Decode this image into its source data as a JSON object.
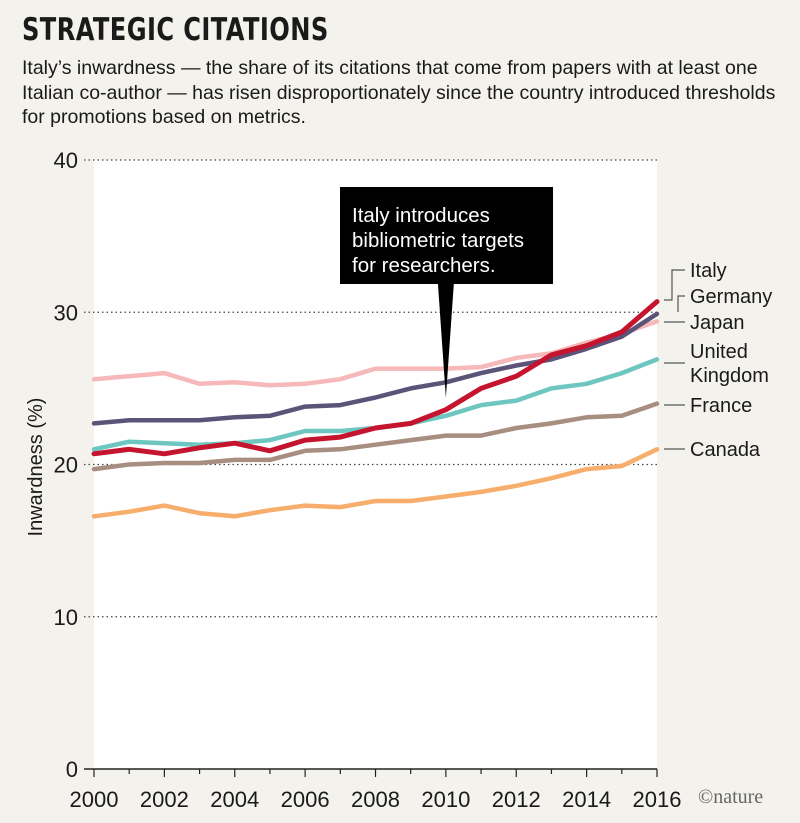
{
  "title": "STRATEGIC CITATIONS",
  "subtitle": "Italy’s inwardness — the share of its citations that come from papers with at least one Italian co-author — has risen disproportionately since the country introduced thresholds for promotions based on metrics.",
  "credit": "©nature",
  "chart_data": {
    "type": "line",
    "title": "STRATEGIC CITATIONS",
    "xlabel": "",
    "ylabel": "Inwardness (%)",
    "xlim": [
      2000,
      2016
    ],
    "ylim": [
      0,
      40
    ],
    "x_ticks": [
      2000,
      2002,
      2004,
      2006,
      2008,
      2010,
      2012,
      2014,
      2016
    ],
    "y_ticks": [
      0,
      10,
      20,
      30,
      40
    ],
    "grid": "horizontal dotted",
    "legend": "labels at line ends, right",
    "x": [
      2000,
      2001,
      2002,
      2003,
      2004,
      2005,
      2006,
      2007,
      2008,
      2009,
      2010,
      2011,
      2012,
      2013,
      2014,
      2015,
      2016
    ],
    "series": [
      {
        "name": "Japan",
        "color": "#f6b8b8",
        "values": [
          25.6,
          25.8,
          26.0,
          25.3,
          25.4,
          25.2,
          25.3,
          25.6,
          26.3,
          26.3,
          26.3,
          26.4,
          27.0,
          27.3,
          28.0,
          28.6,
          29.4
        ]
      },
      {
        "name": "Canada",
        "color": "#f7ae6c",
        "values": [
          16.6,
          16.9,
          17.3,
          16.8,
          16.6,
          17.0,
          17.3,
          17.2,
          17.6,
          17.6,
          17.9,
          18.2,
          18.6,
          19.1,
          19.7,
          19.9,
          21.0
        ]
      },
      {
        "name": "France",
        "color": "#a88e80",
        "values": [
          19.7,
          20.0,
          20.1,
          20.1,
          20.3,
          20.3,
          20.9,
          21.0,
          21.3,
          21.6,
          21.9,
          21.9,
          22.4,
          22.7,
          23.1,
          23.2,
          24.0
        ]
      },
      {
        "name": "United Kingdom",
        "color": "#6ec6c0",
        "values": [
          21.0,
          21.5,
          21.4,
          21.3,
          21.4,
          21.6,
          22.2,
          22.2,
          22.4,
          22.7,
          23.2,
          23.9,
          24.2,
          25.0,
          25.3,
          26.0,
          26.9
        ]
      },
      {
        "name": "Germany",
        "color": "#5c5478",
        "values": [
          22.7,
          22.9,
          22.9,
          22.9,
          23.1,
          23.2,
          23.8,
          23.9,
          24.4,
          25.0,
          25.4,
          26.0,
          26.5,
          26.9,
          27.6,
          28.4,
          29.9
        ]
      },
      {
        "name": "Italy",
        "color": "#c4142e",
        "values": [
          20.7,
          21.0,
          20.7,
          21.1,
          21.4,
          20.9,
          21.6,
          21.8,
          22.4,
          22.7,
          23.6,
          25.0,
          25.8,
          27.2,
          27.8,
          28.7,
          30.7
        ]
      }
    ],
    "labels": [
      {
        "text": "Italy",
        "series": "Italy"
      },
      {
        "text": "Germany",
        "series": "Germany"
      },
      {
        "text": "Japan",
        "series": "Japan"
      },
      {
        "text": "United",
        "series": "United Kingdom"
      },
      {
        "text": "Kingdom",
        "series": "United Kingdom"
      },
      {
        "text": "France",
        "series": "France"
      },
      {
        "text": "Canada",
        "series": "Canada"
      }
    ],
    "annotation": {
      "lines": [
        "Italy introduces",
        "bibliometric targets",
        "for researchers."
      ],
      "x": 2010
    }
  }
}
